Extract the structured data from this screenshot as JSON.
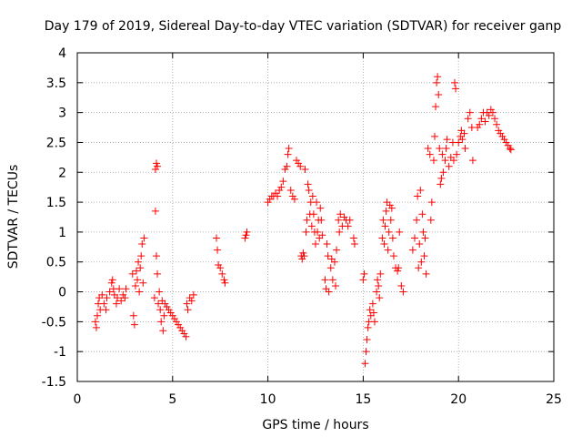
{
  "chart_data": {
    "type": "scatter",
    "title": "Day 179 of 2019, Sidereal Day-to-day VTEC variation (SDTVAR) for receiver ganp",
    "xlabel": "GPS time / hours",
    "ylabel": "SDTVAR / TECUs",
    "xlim": [
      0,
      25
    ],
    "ylim": [
      -1.5,
      4
    ],
    "x_ticks": [
      0,
      5,
      10,
      15,
      20,
      25
    ],
    "x_tick_labels": [
      "0",
      "5",
      "10",
      "15",
      "20",
      "25"
    ],
    "y_ticks": [
      -1.5,
      -1,
      -0.5,
      0,
      0.5,
      1,
      1.5,
      2,
      2.5,
      3,
      3.5,
      4
    ],
    "y_tick_labels": [
      "-1.5",
      "-1",
      "-0.5",
      "0",
      "0.5",
      "1",
      "1.5",
      "2",
      "2.5",
      "3",
      "3.5",
      "4"
    ],
    "grid": true,
    "marker": "+",
    "color": "#ff0000",
    "series": [
      {
        "name": "SDTVAR",
        "points": [
          [
            0.95,
            -0.5
          ],
          [
            1.0,
            -0.6
          ],
          [
            1.05,
            -0.4
          ],
          [
            1.1,
            -0.2
          ],
          [
            1.15,
            -0.1
          ],
          [
            1.2,
            -0.3
          ],
          [
            1.3,
            -0.05
          ],
          [
            1.4,
            -0.2
          ],
          [
            1.5,
            -0.3
          ],
          [
            1.55,
            -0.1
          ],
          [
            1.7,
            0.0
          ],
          [
            1.8,
            0.15
          ],
          [
            1.85,
            0.2
          ],
          [
            1.9,
            0.05
          ],
          [
            1.95,
            -0.05
          ],
          [
            2.05,
            -0.2
          ],
          [
            2.1,
            -0.1
          ],
          [
            2.2,
            0.05
          ],
          [
            2.3,
            -0.15
          ],
          [
            2.4,
            -0.05
          ],
          [
            2.5,
            -0.1
          ],
          [
            2.55,
            0.05
          ],
          [
            2.9,
            0.3
          ],
          [
            2.95,
            -0.4
          ],
          [
            3.0,
            -0.55
          ],
          [
            3.05,
            0.1
          ],
          [
            3.1,
            0.35
          ],
          [
            3.15,
            0.2
          ],
          [
            3.2,
            0.5
          ],
          [
            3.25,
            0.0
          ],
          [
            3.3,
            0.4
          ],
          [
            3.35,
            0.6
          ],
          [
            3.4,
            0.8
          ],
          [
            3.45,
            0.15
          ],
          [
            3.5,
            0.9
          ],
          [
            4.1,
            2.05
          ],
          [
            4.15,
            2.15
          ],
          [
            4.2,
            2.1
          ],
          [
            4.05,
            -0.1
          ],
          [
            4.1,
            1.35
          ],
          [
            4.15,
            0.6
          ],
          [
            4.2,
            0.3
          ],
          [
            4.25,
            -0.2
          ],
          [
            4.3,
            0.0
          ],
          [
            4.35,
            -0.3
          ],
          [
            4.4,
            -0.5
          ],
          [
            4.45,
            -0.15
          ],
          [
            4.5,
            -0.65
          ],
          [
            4.55,
            -0.4
          ],
          [
            4.6,
            -0.2
          ],
          [
            4.7,
            -0.25
          ],
          [
            4.8,
            -0.3
          ],
          [
            4.9,
            -0.35
          ],
          [
            5.0,
            -0.4
          ],
          [
            5.1,
            -0.45
          ],
          [
            5.2,
            -0.5
          ],
          [
            5.3,
            -0.55
          ],
          [
            5.4,
            -0.6
          ],
          [
            5.5,
            -0.65
          ],
          [
            5.6,
            -0.7
          ],
          [
            5.7,
            -0.75
          ],
          [
            5.75,
            -0.2
          ],
          [
            5.8,
            -0.3
          ],
          [
            5.9,
            -0.1
          ],
          [
            6.0,
            -0.15
          ],
          [
            6.1,
            -0.05
          ],
          [
            7.3,
            0.9
          ],
          [
            7.35,
            0.7
          ],
          [
            7.4,
            0.45
          ],
          [
            7.5,
            0.4
          ],
          [
            7.6,
            0.3
          ],
          [
            7.7,
            0.2
          ],
          [
            7.75,
            0.15
          ],
          [
            8.8,
            0.9
          ],
          [
            8.85,
            0.95
          ],
          [
            8.9,
            1.0
          ],
          [
            10.0,
            1.5
          ],
          [
            10.1,
            1.55
          ],
          [
            10.2,
            1.6
          ],
          [
            10.3,
            1.6
          ],
          [
            10.4,
            1.65
          ],
          [
            10.5,
            1.6
          ],
          [
            10.6,
            1.7
          ],
          [
            10.7,
            1.75
          ],
          [
            10.8,
            1.85
          ],
          [
            10.9,
            2.05
          ],
          [
            11.0,
            2.1
          ],
          [
            11.05,
            2.3
          ],
          [
            11.1,
            2.4
          ],
          [
            11.2,
            1.7
          ],
          [
            11.3,
            1.6
          ],
          [
            11.4,
            1.55
          ],
          [
            11.5,
            2.2
          ],
          [
            11.6,
            2.15
          ],
          [
            11.7,
            2.1
          ],
          [
            11.75,
            0.6
          ],
          [
            11.8,
            0.55
          ],
          [
            11.85,
            0.65
          ],
          [
            11.9,
            0.6
          ],
          [
            11.95,
            2.05
          ],
          [
            12.0,
            1.0
          ],
          [
            12.05,
            1.2
          ],
          [
            12.1,
            1.8
          ],
          [
            12.15,
            1.7
          ],
          [
            12.2,
            1.3
          ],
          [
            12.25,
            1.5
          ],
          [
            12.3,
            1.1
          ],
          [
            12.35,
            1.6
          ],
          [
            12.4,
            1.3
          ],
          [
            12.45,
            1.0
          ],
          [
            12.5,
            0.8
          ],
          [
            12.55,
            1.5
          ],
          [
            12.6,
            1.0
          ],
          [
            12.65,
            1.2
          ],
          [
            12.7,
            0.9
          ],
          [
            12.75,
            1.4
          ],
          [
            12.8,
            1.2
          ],
          [
            12.85,
            0.95
          ],
          [
            13.0,
            0.2
          ],
          [
            13.05,
            0.05
          ],
          [
            13.1,
            0.8
          ],
          [
            13.15,
            0.6
          ],
          [
            13.2,
            0.0
          ],
          [
            13.3,
            0.4
          ],
          [
            13.35,
            0.55
          ],
          [
            13.4,
            0.2
          ],
          [
            13.5,
            0.5
          ],
          [
            13.55,
            0.1
          ],
          [
            13.6,
            0.7
          ],
          [
            13.7,
            1.2
          ],
          [
            13.75,
            1.0
          ],
          [
            13.8,
            1.3
          ],
          [
            13.9,
            1.1
          ],
          [
            14.0,
            1.25
          ],
          [
            14.1,
            1.2
          ],
          [
            14.2,
            1.1
          ],
          [
            14.3,
            1.2
          ],
          [
            14.5,
            0.9
          ],
          [
            14.55,
            0.8
          ],
          [
            15.0,
            0.2
          ],
          [
            15.05,
            0.3
          ],
          [
            15.1,
            -1.2
          ],
          [
            15.15,
            -1.0
          ],
          [
            15.2,
            -0.8
          ],
          [
            15.25,
            -0.6
          ],
          [
            15.3,
            -0.5
          ],
          [
            15.35,
            -0.3
          ],
          [
            15.4,
            -0.4
          ],
          [
            15.5,
            -0.2
          ],
          [
            15.55,
            -0.35
          ],
          [
            15.6,
            -0.5
          ],
          [
            15.7,
            0.0
          ],
          [
            15.75,
            0.2
          ],
          [
            15.8,
            0.1
          ],
          [
            15.85,
            -0.1
          ],
          [
            15.9,
            0.3
          ],
          [
            16.0,
            0.9
          ],
          [
            16.05,
            1.2
          ],
          [
            16.1,
            0.8
          ],
          [
            16.15,
            1.1
          ],
          [
            16.2,
            1.35
          ],
          [
            16.25,
            1.5
          ],
          [
            16.3,
            0.7
          ],
          [
            16.35,
            1.0
          ],
          [
            16.4,
            1.45
          ],
          [
            16.45,
            1.2
          ],
          [
            16.5,
            1.4
          ],
          [
            16.55,
            0.9
          ],
          [
            16.6,
            0.6
          ],
          [
            16.7,
            0.4
          ],
          [
            16.8,
            0.35
          ],
          [
            16.85,
            0.4
          ],
          [
            16.9,
            1.0
          ],
          [
            17.0,
            0.1
          ],
          [
            17.1,
            0.0
          ],
          [
            17.6,
            0.7
          ],
          [
            17.7,
            0.9
          ],
          [
            17.8,
            1.2
          ],
          [
            17.85,
            1.6
          ],
          [
            17.9,
            0.4
          ],
          [
            17.95,
            0.8
          ],
          [
            18.0,
            1.7
          ],
          [
            18.05,
            0.5
          ],
          [
            18.1,
            1.3
          ],
          [
            18.15,
            1.0
          ],
          [
            18.2,
            0.6
          ],
          [
            18.25,
            0.9
          ],
          [
            18.3,
            0.3
          ],
          [
            18.4,
            2.4
          ],
          [
            18.5,
            2.3
          ],
          [
            18.55,
            1.2
          ],
          [
            18.6,
            1.5
          ],
          [
            18.7,
            2.2
          ],
          [
            18.75,
            2.6
          ],
          [
            18.8,
            3.1
          ],
          [
            18.85,
            3.5
          ],
          [
            18.9,
            3.6
          ],
          [
            18.95,
            3.3
          ],
          [
            19.0,
            2.4
          ],
          [
            19.05,
            1.8
          ],
          [
            19.1,
            1.9
          ],
          [
            19.15,
            2.3
          ],
          [
            19.2,
            2.0
          ],
          [
            19.3,
            2.2
          ],
          [
            19.35,
            2.4
          ],
          [
            19.4,
            2.55
          ],
          [
            19.5,
            2.1
          ],
          [
            19.6,
            2.25
          ],
          [
            19.7,
            2.5
          ],
          [
            19.75,
            2.2
          ],
          [
            19.8,
            3.5
          ],
          [
            19.85,
            3.4
          ],
          [
            19.9,
            2.3
          ],
          [
            20.0,
            2.5
          ],
          [
            20.1,
            2.6
          ],
          [
            20.15,
            2.7
          ],
          [
            20.2,
            2.55
          ],
          [
            20.3,
            2.65
          ],
          [
            20.35,
            2.4
          ],
          [
            20.5,
            2.9
          ],
          [
            20.6,
            3.0
          ],
          [
            20.7,
            2.75
          ],
          [
            20.75,
            2.2
          ],
          [
            21.0,
            2.75
          ],
          [
            21.1,
            2.8
          ],
          [
            21.2,
            2.9
          ],
          [
            21.3,
            3.0
          ],
          [
            21.4,
            2.85
          ],
          [
            21.5,
            3.0
          ],
          [
            21.6,
            2.95
          ],
          [
            21.7,
            3.05
          ],
          [
            21.8,
            3.0
          ],
          [
            21.9,
            2.9
          ],
          [
            22.0,
            2.8
          ],
          [
            22.1,
            2.7
          ],
          [
            22.2,
            2.65
          ],
          [
            22.3,
            2.6
          ],
          [
            22.4,
            2.55
          ],
          [
            22.5,
            2.5
          ],
          [
            22.6,
            2.45
          ],
          [
            22.7,
            2.4
          ],
          [
            22.75,
            2.38
          ]
        ]
      }
    ]
  }
}
